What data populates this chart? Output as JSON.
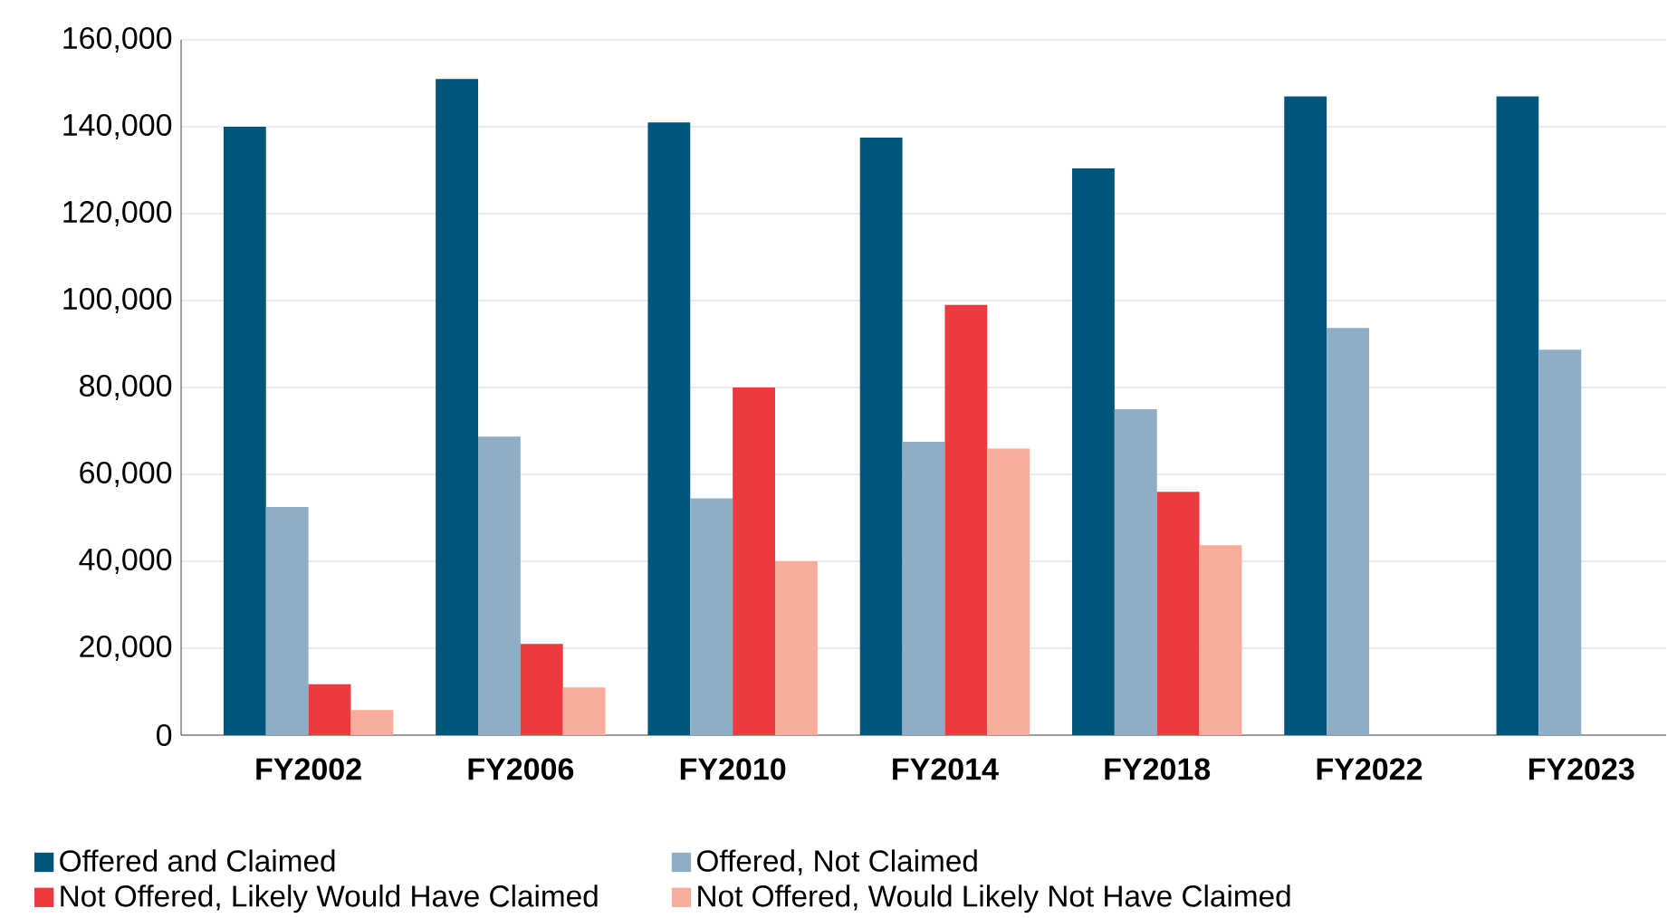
{
  "chart_data": {
    "type": "bar",
    "categories": [
      "FY2002",
      "FY2006",
      "FY2010",
      "FY2014",
      "FY2018",
      "FY2022",
      "FY2023"
    ],
    "series": [
      {
        "name": "Offered and Claimed",
        "color": "#00567a",
        "values": [
          140000,
          151000,
          141000,
          137500,
          130400,
          147000,
          147000
        ]
      },
      {
        "name": "Offered, Not Claimed",
        "color": "#8eaec8",
        "values": [
          52500,
          68700,
          54500,
          67500,
          75000,
          93700,
          88700
        ]
      },
      {
        "name": "Not Offered, Likely Would Have Claimed",
        "color": "#ee3a3f",
        "values": [
          11700,
          21000,
          80000,
          99000,
          56000,
          null,
          null
        ]
      },
      {
        "name": "Not Offered, Would Likely Not Have Claimed",
        "color": "#f8ad9c",
        "values": [
          5800,
          11000,
          40000,
          66000,
          43700,
          null,
          null
        ]
      }
    ],
    "ylim": [
      0,
      160000
    ],
    "yticks": [
      {
        "value": 0,
        "label": "0"
      },
      {
        "value": 20000,
        "label": "20,000"
      },
      {
        "value": 40000,
        "label": "40,000"
      },
      {
        "value": 60000,
        "label": "60,000"
      },
      {
        "value": 80000,
        "label": "80,000"
      },
      {
        "value": 100000,
        "label": "100,000"
      },
      {
        "value": 120000,
        "label": "120,000"
      },
      {
        "value": 140000,
        "label": "140,000"
      },
      {
        "value": 160000,
        "label": "160,000"
      }
    ],
    "grid": "y",
    "legend": "bottom"
  }
}
